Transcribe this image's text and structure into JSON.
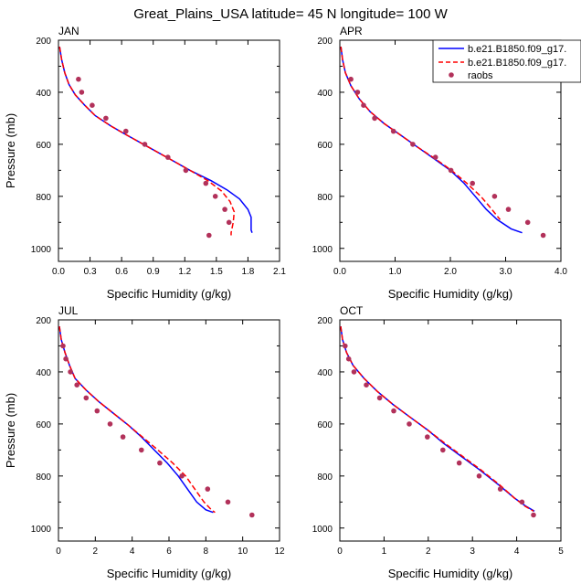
{
  "title": "Great_Plains_USA  latitude= 45 N longitude= 100 W",
  "chart_data": {
    "type": "line",
    "layout": "2x2 panels",
    "ylabel": "Pressure (mb)",
    "xlabel": "Specific Humidity (g/kg)",
    "y_axis_inverted": true,
    "legend": {
      "placement": "top-right of APR panel",
      "entries": [
        {
          "name": "b.e21.B1850.f09_g17.",
          "style": "solid",
          "color": "#0000ff"
        },
        {
          "name": "b.e21.B1850.f09_g17.",
          "style": "dashed",
          "color": "#ff0000"
        },
        {
          "name": "raobs",
          "style": "marker",
          "color": "#b2315a"
        }
      ]
    },
    "panels": [
      {
        "label": "JAN",
        "xlim": [
          0,
          2.1
        ],
        "xticks": [
          "0.0",
          "0.3",
          "0.6",
          "0.9",
          "1.2",
          "1.5",
          "1.8",
          "2.1"
        ],
        "ylim": [
          200,
          1050
        ],
        "yticks": [
          "200",
          "400",
          "600",
          "800",
          "1000"
        ],
        "series": [
          {
            "name": "b.e21.B1850.f09_g17.",
            "style": "solid",
            "color": "#0000ff",
            "points": [
              [
                0.01,
                225
              ],
              [
                0.03,
                275
              ],
              [
                0.06,
                325
              ],
              [
                0.1,
                370
              ],
              [
                0.16,
                410
              ],
              [
                0.25,
                450
              ],
              [
                0.35,
                490
              ],
              [
                0.5,
                530
              ],
              [
                0.65,
                565
              ],
              [
                0.85,
                610
              ],
              [
                1.05,
                655
              ],
              [
                1.25,
                700
              ],
              [
                1.45,
                740
              ],
              [
                1.6,
                775
              ],
              [
                1.72,
                810
              ],
              [
                1.8,
                850
              ],
              [
                1.83,
                880
              ],
              [
                1.83,
                930
              ],
              [
                1.84,
                940
              ]
            ]
          },
          {
            "name": "b.e21.B1850.f09_g17.",
            "style": "dashed",
            "color": "#ff0000",
            "points": [
              [
                0.01,
                225
              ],
              [
                0.03,
                275
              ],
              [
                0.06,
                325
              ],
              [
                0.1,
                370
              ],
              [
                0.16,
                410
              ],
              [
                0.25,
                450
              ],
              [
                0.35,
                490
              ],
              [
                0.5,
                530
              ],
              [
                0.65,
                565
              ],
              [
                0.85,
                610
              ],
              [
                1.05,
                655
              ],
              [
                1.25,
                700
              ],
              [
                1.42,
                740
              ],
              [
                1.55,
                780
              ],
              [
                1.63,
                820
              ],
              [
                1.67,
                860
              ],
              [
                1.66,
                900
              ],
              [
                1.64,
                940
              ],
              [
                1.64,
                950
              ]
            ]
          }
        ],
        "raobs": [
          [
            0.19,
            350
          ],
          [
            0.22,
            400
          ],
          [
            0.32,
            450
          ],
          [
            0.45,
            500
          ],
          [
            0.64,
            550
          ],
          [
            0.82,
            600
          ],
          [
            1.04,
            650
          ],
          [
            1.21,
            700
          ],
          [
            1.4,
            750
          ],
          [
            1.49,
            800
          ],
          [
            1.58,
            850
          ],
          [
            1.62,
            900
          ],
          [
            1.43,
            950
          ]
        ]
      },
      {
        "label": "APR",
        "xlim": [
          0,
          4.0
        ],
        "xticks": [
          "0.0",
          "1.0",
          "2.0",
          "3.0",
          "4.0"
        ],
        "ylim": [
          200,
          1050
        ],
        "yticks": [
          "200",
          "400",
          "600",
          "800",
          "1000"
        ],
        "series": [
          {
            "name": "b.e21.B1850.f09_g17.",
            "style": "solid",
            "color": "#0000ff",
            "points": [
              [
                0.02,
                225
              ],
              [
                0.05,
                275
              ],
              [
                0.1,
                325
              ],
              [
                0.2,
                375
              ],
              [
                0.35,
                425
              ],
              [
                0.55,
                475
              ],
              [
                0.8,
                520
              ],
              [
                1.1,
                565
              ],
              [
                1.4,
                610
              ],
              [
                1.7,
                655
              ],
              [
                2.0,
                700
              ],
              [
                2.25,
                750
              ],
              [
                2.45,
                800
              ],
              [
                2.65,
                850
              ],
              [
                2.85,
                890
              ],
              [
                3.1,
                925
              ],
              [
                3.3,
                940
              ]
            ]
          },
          {
            "name": "b.e21.B1850.f09_g17.",
            "style": "dashed",
            "color": "#ff0000",
            "points": [
              [
                0.02,
                225
              ],
              [
                0.05,
                275
              ],
              [
                0.1,
                325
              ],
              [
                0.2,
                375
              ],
              [
                0.35,
                425
              ],
              [
                0.55,
                475
              ],
              [
                0.8,
                520
              ],
              [
                1.1,
                565
              ],
              [
                1.4,
                610
              ],
              [
                1.72,
                655
              ],
              [
                2.02,
                700
              ],
              [
                2.3,
                750
              ],
              [
                2.55,
                800
              ],
              [
                2.75,
                850
              ],
              [
                2.9,
                890
              ]
            ]
          }
        ],
        "raobs": [
          [
            0.2,
            350
          ],
          [
            0.32,
            400
          ],
          [
            0.43,
            450
          ],
          [
            0.63,
            500
          ],
          [
            0.97,
            550
          ],
          [
            1.32,
            600
          ],
          [
            1.73,
            650
          ],
          [
            2.01,
            700
          ],
          [
            2.4,
            750
          ],
          [
            2.8,
            800
          ],
          [
            3.05,
            850
          ],
          [
            3.4,
            900
          ],
          [
            3.68,
            950
          ]
        ]
      },
      {
        "label": "JUL",
        "xlim": [
          0,
          12
        ],
        "xticks": [
          "0",
          "2",
          "4",
          "6",
          "8",
          "10",
          "12"
        ],
        "ylim": [
          200,
          1050
        ],
        "yticks": [
          "200",
          "400",
          "600",
          "800",
          "1000"
        ],
        "series": [
          {
            "name": "b.e21.B1850.f09_g17.",
            "style": "solid",
            "color": "#0000ff",
            "points": [
              [
                0.05,
                225
              ],
              [
                0.15,
                275
              ],
              [
                0.35,
                325
              ],
              [
                0.6,
                375
              ],
              [
                0.9,
                425
              ],
              [
                1.5,
                470
              ],
              [
                2.2,
                515
              ],
              [
                3.0,
                560
              ],
              [
                3.8,
                605
              ],
              [
                4.5,
                650
              ],
              [
                5.2,
                700
              ],
              [
                5.9,
                750
              ],
              [
                6.5,
                800
              ],
              [
                7.0,
                850
              ],
              [
                7.5,
                900
              ],
              [
                8.0,
                930
              ],
              [
                8.4,
                940
              ]
            ]
          },
          {
            "name": "b.e21.B1850.f09_g17.",
            "style": "dashed",
            "color": "#ff0000",
            "points": [
              [
                0.05,
                225
              ],
              [
                0.15,
                275
              ],
              [
                0.35,
                325
              ],
              [
                0.6,
                375
              ],
              [
                0.9,
                425
              ],
              [
                1.5,
                470
              ],
              [
                2.2,
                515
              ],
              [
                3.0,
                560
              ],
              [
                3.8,
                605
              ],
              [
                4.55,
                650
              ],
              [
                5.4,
                700
              ],
              [
                6.2,
                750
              ],
              [
                6.9,
                800
              ],
              [
                7.4,
                850
              ],
              [
                7.9,
                900
              ],
              [
                8.3,
                930
              ],
              [
                8.5,
                940
              ]
            ]
          }
        ],
        "raobs": [
          [
            0.25,
            300
          ],
          [
            0.4,
            350
          ],
          [
            0.65,
            400
          ],
          [
            1.0,
            450
          ],
          [
            1.5,
            500
          ],
          [
            2.1,
            550
          ],
          [
            2.8,
            600
          ],
          [
            3.5,
            650
          ],
          [
            4.5,
            700
          ],
          [
            5.5,
            750
          ],
          [
            6.7,
            800
          ],
          [
            8.1,
            850
          ],
          [
            9.2,
            900
          ],
          [
            10.5,
            950
          ]
        ]
      },
      {
        "label": "OCT",
        "xlim": [
          0,
          5
        ],
        "xticks": [
          "0",
          "1",
          "2",
          "3",
          "4",
          "5"
        ],
        "ylim": [
          200,
          1050
        ],
        "yticks": [
          "200",
          "400",
          "600",
          "800",
          "1000"
        ],
        "series": [
          {
            "name": "b.e21.B1850.f09_g17.",
            "style": "solid",
            "color": "#0000ff",
            "points": [
              [
                0.02,
                225
              ],
              [
                0.06,
                275
              ],
              [
                0.15,
                325
              ],
              [
                0.3,
                375
              ],
              [
                0.55,
                425
              ],
              [
                0.85,
                475
              ],
              [
                1.2,
                525
              ],
              [
                1.6,
                575
              ],
              [
                2.0,
                625
              ],
              [
                2.35,
                675
              ],
              [
                2.75,
                725
              ],
              [
                3.15,
                775
              ],
              [
                3.6,
                835
              ],
              [
                3.95,
                885
              ],
              [
                4.2,
                915
              ],
              [
                4.4,
                935
              ]
            ]
          },
          {
            "name": "b.e21.B1850.f09_g17.",
            "style": "dashed",
            "color": "#ff0000",
            "points": [
              [
                0.02,
                225
              ],
              [
                0.06,
                275
              ],
              [
                0.15,
                325
              ],
              [
                0.3,
                375
              ],
              [
                0.55,
                425
              ],
              [
                0.85,
                475
              ],
              [
                1.2,
                525
              ],
              [
                1.6,
                575
              ],
              [
                2.0,
                625
              ],
              [
                2.38,
                675
              ],
              [
                2.78,
                725
              ],
              [
                3.18,
                775
              ],
              [
                3.62,
                835
              ],
              [
                3.95,
                885
              ],
              [
                4.18,
                915
              ],
              [
                4.38,
                935
              ]
            ]
          }
        ],
        "raobs": [
          [
            0.12,
            300
          ],
          [
            0.2,
            350
          ],
          [
            0.32,
            400
          ],
          [
            0.6,
            450
          ],
          [
            0.9,
            500
          ],
          [
            1.22,
            550
          ],
          [
            1.57,
            600
          ],
          [
            1.98,
            650
          ],
          [
            2.33,
            700
          ],
          [
            2.7,
            750
          ],
          [
            3.15,
            800
          ],
          [
            3.63,
            850
          ],
          [
            4.12,
            900
          ],
          [
            4.38,
            950
          ]
        ]
      }
    ]
  }
}
